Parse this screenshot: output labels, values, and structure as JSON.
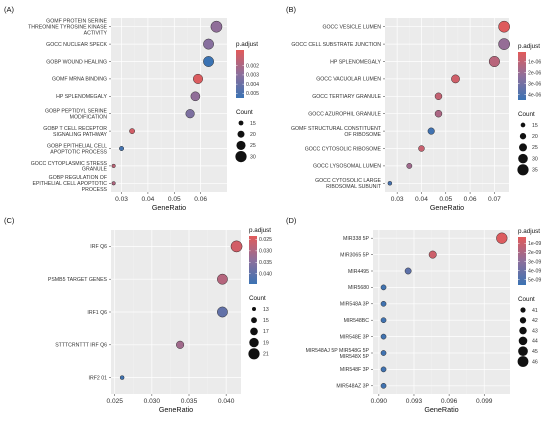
{
  "chart_data": [
    {
      "type": "scatter",
      "panel_label": "(A)",
      "xlabel": "GeneRatio",
      "ylabel": "",
      "xlim": [
        0.026,
        0.07
      ],
      "xticks": [
        0.03,
        0.04,
        0.05,
        0.06
      ],
      "xtick_labels": [
        "0.03",
        "0.04",
        "0.05",
        "0.06"
      ],
      "points": [
        {
          "label": [
            "GOMF PROTEIN SERINE",
            "THREONINE TYROSINE KINASE",
            "ACTIVITY"
          ],
          "x": 0.066,
          "count": 30,
          "padj": 0.0028
        },
        {
          "label": [
            "GOCC NUCLEAR SPECK"
          ],
          "x": 0.063,
          "count": 28,
          "padj": 0.0031
        },
        {
          "label": [
            "GOBP WOUND HEALING"
          ],
          "x": 0.063,
          "count": 28,
          "padj": 0.0055
        },
        {
          "label": [
            "GOMF MRNA BINDING"
          ],
          "x": 0.059,
          "count": 26,
          "padj": 0.0005
        },
        {
          "label": [
            "HP SPLENOMEGALY"
          ],
          "x": 0.058,
          "count": 25,
          "padj": 0.0028
        },
        {
          "label": [
            "GOBP PEPTIDYL SERINE",
            "MODIFICATION"
          ],
          "x": 0.056,
          "count": 24,
          "padj": 0.0034
        },
        {
          "label": [
            "GOBP T CELL RECEPTOR",
            "SIGNALING PATHWAY"
          ],
          "x": 0.034,
          "count": 16,
          "padj": 0.0008
        },
        {
          "label": [
            "GOBP EPITHELIAL CELL",
            "APOPTOTIC PROCESS"
          ],
          "x": 0.03,
          "count": 14,
          "padj": 0.0052
        },
        {
          "label": [
            "GOCC CYTOPLASMIC STRESS",
            "GRANULE"
          ],
          "x": 0.027,
          "count": 12,
          "padj": 0.0014
        },
        {
          "label": [
            "GOBP REGULATION OF",
            "EPITHELIAL CELL APOPTOTIC",
            "PROCESS"
          ],
          "x": 0.027,
          "count": 12,
          "padj": 0.0018
        }
      ],
      "color_legend": {
        "title": "p.adjust",
        "range": [
          0.0003,
          0.0055
        ],
        "tick_values": [
          0.002,
          0.003,
          0.004,
          0.005
        ],
        "tick_labels": [
          "0.002",
          "0.003",
          "0.004",
          "0.005"
        ]
      },
      "size_legend": {
        "title": "Count",
        "range": [
          12,
          30
        ],
        "values": [
          15,
          20,
          25,
          30
        ],
        "labels": [
          "15",
          "20",
          "25",
          "30"
        ]
      }
    },
    {
      "type": "scatter",
      "panel_label": "(B)",
      "xlabel": "GeneRatio",
      "ylabel": "",
      "xlim": [
        0.025,
        0.076
      ],
      "xticks": [
        0.03,
        0.04,
        0.05,
        0.06,
        0.07
      ],
      "xtick_labels": [
        "0.03",
        "0.04",
        "0.05",
        "0.06",
        "0.07"
      ],
      "points": [
        {
          "label": [
            "GOCC VESICLE LUMEN"
          ],
          "x": 0.074,
          "count": 35,
          "padj": 2e-07
        },
        {
          "label": [
            "GOCC CELL SUBSTRATE JUNCTION"
          ],
          "x": 0.074,
          "count": 35,
          "padj": 2.1e-06
        },
        {
          "label": [
            "HP SPLENOMEGALY"
          ],
          "x": 0.07,
          "count": 33,
          "padj": 1.2e-06
        },
        {
          "label": [
            "GOCC VACUOLAR LUMEN"
          ],
          "x": 0.054,
          "count": 26,
          "padj": 6e-07
        },
        {
          "label": [
            "GOCC TERTIARY GRANULE"
          ],
          "x": 0.047,
          "count": 22,
          "padj": 9e-07
        },
        {
          "label": [
            "GOCC AZUROPHIL GRANULE"
          ],
          "x": 0.047,
          "count": 22,
          "padj": 1.5e-06
        },
        {
          "label": [
            "GOMF STRUCTURAL CONSTITUENT",
            "OF RIBOSOME"
          ],
          "x": 0.044,
          "count": 21,
          "padj": 4.3e-06
        },
        {
          "label": [
            "GOCC CYTOSOLIC RIBOSOME"
          ],
          "x": 0.04,
          "count": 19,
          "padj": 8e-07
        },
        {
          "label": [
            "GOCC LYSOSOMAL LUMEN"
          ],
          "x": 0.035,
          "count": 17,
          "padj": 1.8e-06
        },
        {
          "label": [
            "GOCC CYTOSOLIC LARGE",
            "RIBOSOMAL SUBUNIT"
          ],
          "x": 0.027,
          "count": 13,
          "padj": 4.2e-06
        }
      ],
      "color_legend": {
        "title": "p.adjust",
        "range": [
          1e-07,
          4.5e-06
        ],
        "tick_values": [
          1e-06,
          2e-06,
          3e-06,
          4e-06
        ],
        "tick_labels": [
          "1e-06",
          "2e-06",
          "3e-06",
          "4e-06"
        ]
      },
      "size_legend": {
        "title": "Count",
        "range": [
          13,
          35
        ],
        "values": [
          15,
          20,
          25,
          30,
          35
        ],
        "labels": [
          "15",
          "20",
          "25",
          "30",
          "35"
        ]
      }
    },
    {
      "type": "scatter",
      "panel_label": "(C)",
      "xlabel": "GeneRatio",
      "ylabel": "",
      "xlim": [
        0.0245,
        0.042
      ],
      "xticks": [
        0.025,
        0.03,
        0.035,
        0.04
      ],
      "xtick_labels": [
        "0.025",
        "0.030",
        "0.035",
        "0.040"
      ],
      "points": [
        {
          "label": [
            "IRF Q6"
          ],
          "x": 0.0414,
          "count": 21,
          "padj": 0.0255
        },
        {
          "label": [
            "PSMB5 TARGET GENES"
          ],
          "x": 0.0395,
          "count": 20,
          "padj": 0.029
        },
        {
          "label": [
            "IRF1 Q6"
          ],
          "x": 0.0395,
          "count": 20,
          "padj": 0.0395
        },
        {
          "label": [
            "STTTCRNTTT IRF Q6"
          ],
          "x": 0.0338,
          "count": 17,
          "padj": 0.0315
        },
        {
          "label": [
            "IRF2 01"
          ],
          "x": 0.026,
          "count": 13,
          "padj": 0.044
        }
      ],
      "color_legend": {
        "title": "p.adjust",
        "range": [
          0.0235,
          0.0445
        ],
        "tick_values": [
          0.025,
          0.03,
          0.035,
          0.04
        ],
        "tick_labels": [
          "0.025",
          "0.030",
          "0.035",
          "0.040"
        ]
      },
      "size_legend": {
        "title": "Count",
        "range": [
          13,
          21
        ],
        "values": [
          13,
          15,
          17,
          19,
          21
        ],
        "labels": [
          "13",
          "15",
          "17",
          "19",
          "21"
        ]
      }
    },
    {
      "type": "scatter",
      "panel_label": "(D)",
      "xlabel": "GeneRatio",
      "ylabel": "",
      "xlim": [
        0.0895,
        0.1012
      ],
      "xticks": [
        0.09,
        0.093,
        0.096,
        0.099
      ],
      "xtick_labels": [
        "0.090",
        "0.093",
        "0.096",
        "0.099"
      ],
      "points": [
        {
          "label": [
            "MIR338 5P"
          ],
          "x": 0.1005,
          "count": 46,
          "padj": 5e-10
        },
        {
          "label": [
            "MIR3065 5P"
          ],
          "x": 0.0946,
          "count": 43,
          "padj": 1e-09
        },
        {
          "label": [
            "MIR4495"
          ],
          "x": 0.0925,
          "count": 42,
          "padj": 4.5e-09
        },
        {
          "label": [
            "MIR5680"
          ],
          "x": 0.0904,
          "count": 41,
          "padj": 5.4e-09
        },
        {
          "label": [
            "MIR548A 3P"
          ],
          "x": 0.0904,
          "count": 41,
          "padj": 5.4e-09
        },
        {
          "label": [
            "MIR548BC"
          ],
          "x": 0.0904,
          "count": 41,
          "padj": 5.4e-09
        },
        {
          "label": [
            "MIR548E 3P"
          ],
          "x": 0.0904,
          "count": 41,
          "padj": 5.4e-09
        },
        {
          "label": [
            "MIR548AJ 5P MIR548G 5P",
            "MIR548X 5P"
          ],
          "x": 0.0904,
          "count": 41,
          "padj": 5.4e-09
        },
        {
          "label": [
            "MIR548F 3P"
          ],
          "x": 0.0904,
          "count": 41,
          "padj": 5.4e-09
        },
        {
          "label": [
            "MIR548AZ 3P"
          ],
          "x": 0.0904,
          "count": 41,
          "padj": 5.4e-09
        }
      ],
      "color_legend": {
        "title": "p.adjust",
        "range": [
          3e-10,
          5.6e-09
        ],
        "tick_values": [
          1e-09,
          2e-09,
          3e-09,
          4e-09,
          5e-09
        ],
        "tick_labels": [
          "1e-09",
          "2e-09",
          "3e-09",
          "4e-09",
          "5e-09"
        ]
      },
      "size_legend": {
        "title": "Count",
        "range": [
          41,
          46
        ],
        "values": [
          41,
          42,
          43,
          44,
          45,
          46
        ],
        "labels": [
          "41",
          "42",
          "43",
          "44",
          "45",
          "46"
        ]
      }
    }
  ],
  "colors": {
    "low_padj": "#e25a5a",
    "mid_padj": "#8d6f9c",
    "high_padj": "#3b73b3",
    "panel": "#ebebeb"
  }
}
